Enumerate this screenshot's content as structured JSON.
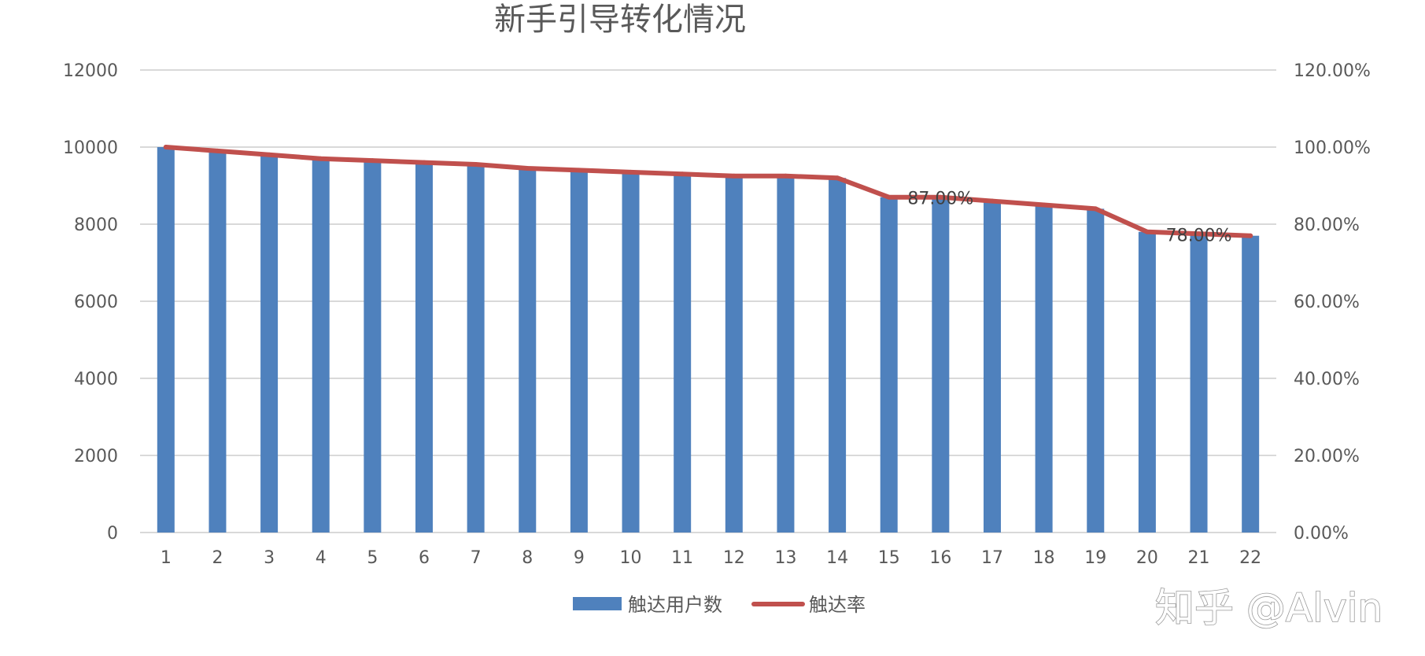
{
  "chart_data": {
    "type": "bar",
    "title": "新手引导转化情况",
    "categories": [
      "1",
      "2",
      "3",
      "4",
      "5",
      "6",
      "7",
      "8",
      "9",
      "10",
      "11",
      "12",
      "13",
      "14",
      "15",
      "16",
      "17",
      "18",
      "19",
      "20",
      "21",
      "22"
    ],
    "series": [
      {
        "name": "触达用户数",
        "type": "bar",
        "axis": "left",
        "color": "#4F81BD",
        "values": [
          10000,
          9900,
          9800,
          9700,
          9650,
          9600,
          9550,
          9450,
          9400,
          9350,
          9300,
          9250,
          9250,
          9200,
          8700,
          8700,
          8600,
          8500,
          8400,
          7800,
          7750,
          7700
        ]
      },
      {
        "name": "触达率",
        "type": "line",
        "axis": "right",
        "color": "#C0504D",
        "values": [
          100,
          99,
          98,
          97,
          96.5,
          96,
          95.5,
          94.5,
          94,
          93.5,
          93,
          92.5,
          92.5,
          92,
          87,
          87,
          86,
          85,
          84,
          78,
          77.5,
          77
        ]
      }
    ],
    "y_left": {
      "min": 0,
      "max": 12000,
      "ticks": [
        "0",
        "2000",
        "4000",
        "6000",
        "8000",
        "10000",
        "12000"
      ]
    },
    "y_right": {
      "min": 0,
      "max": 120,
      "ticks": [
        "0.00%",
        "20.00%",
        "40.00%",
        "60.00%",
        "80.00%",
        "100.00%",
        "120.00%"
      ]
    },
    "data_labels": [
      {
        "index": 15,
        "text": "87.00%"
      },
      {
        "index": 20,
        "text": "78.00%"
      }
    ],
    "grid": true,
    "legend_position": "bottom"
  },
  "watermark": "知乎 @Alvin"
}
